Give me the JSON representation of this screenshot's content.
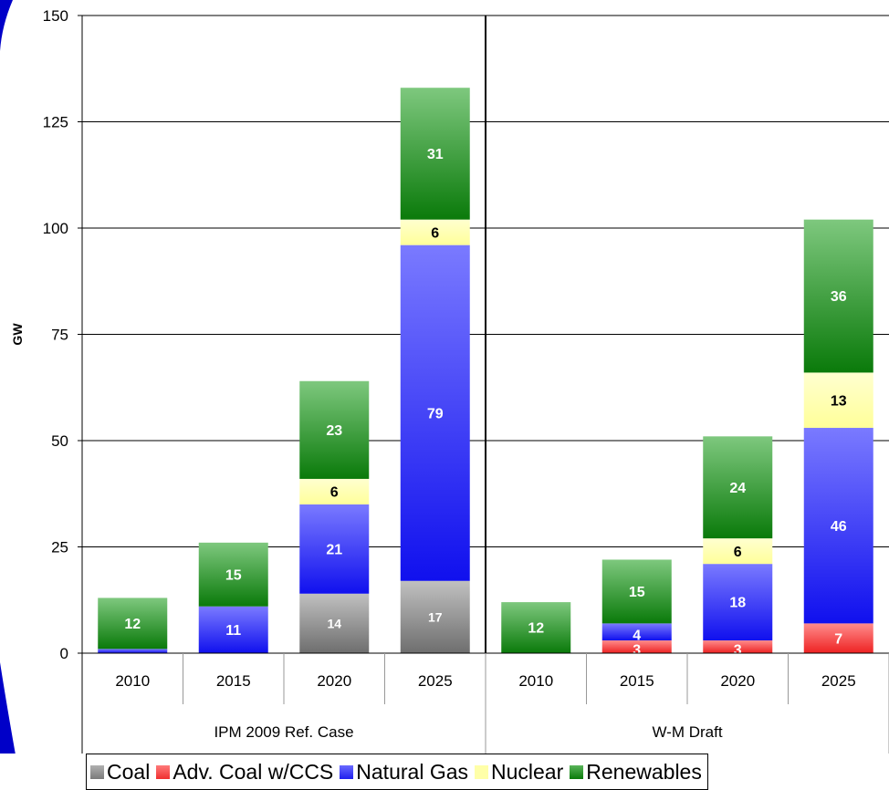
{
  "chart_data": {
    "type": "bar",
    "stacked": true,
    "ylabel": "GW",
    "ylim": [
      0,
      150
    ],
    "yticks": [
      "0",
      "25",
      "50",
      "75",
      "100",
      "125",
      "150"
    ],
    "grid": true,
    "legend_position": "bottom",
    "groups": [
      {
        "label": "IPM 2009 Ref. Case",
        "categories": [
          "2010",
          "2015",
          "2020",
          "2025"
        ],
        "series": [
          {
            "name": "Coal",
            "values": [
              0,
              0,
              14,
              17
            ],
            "labels": [
              "",
              "",
              "14",
              "17"
            ]
          },
          {
            "name": "Adv. Coal w/CCS",
            "values": [
              0,
              0,
              0,
              0
            ],
            "labels": [
              "",
              "",
              "",
              ""
            ]
          },
          {
            "name": "Natural Gas",
            "values": [
              1,
              11,
              21,
              79
            ],
            "labels": [
              "",
              "11",
              "21",
              "79"
            ]
          },
          {
            "name": "Nuclear",
            "values": [
              0,
              0,
              6,
              6
            ],
            "labels": [
              "",
              "",
              "6",
              "6"
            ]
          },
          {
            "name": "Renewables",
            "values": [
              12,
              15,
              23,
              31
            ],
            "labels": [
              "12",
              "15",
              "23",
              "31"
            ]
          }
        ]
      },
      {
        "label": "W-M Draft",
        "categories": [
          "2010",
          "2015",
          "2020",
          "2025"
        ],
        "series": [
          {
            "name": "Coal",
            "values": [
              0,
              0,
              0,
              0
            ],
            "labels": [
              "",
              "",
              "",
              ""
            ]
          },
          {
            "name": "Adv. Coal w/CCS",
            "values": [
              0,
              3,
              3,
              7
            ],
            "labels": [
              "",
              "3",
              "3",
              "7"
            ]
          },
          {
            "name": "Natural Gas",
            "values": [
              0,
              4,
              18,
              46
            ],
            "labels": [
              "",
              "4",
              "18",
              "46"
            ]
          },
          {
            "name": "Nuclear",
            "values": [
              0,
              0,
              6,
              13
            ],
            "labels": [
              "",
              "",
              "6",
              "13"
            ]
          },
          {
            "name": "Renewables",
            "values": [
              12,
              15,
              24,
              36
            ],
            "labels": [
              "12",
              "15",
              "24",
              "36"
            ]
          }
        ]
      }
    ],
    "colors": {
      "Coal": "#8c8c8c",
      "Adv. Coal w/CCS": "#ff4a4a",
      "Natural Gas": "#4a4af2",
      "Nuclear": "#ffffa8",
      "Renewables": "#2e9a2e"
    },
    "label_colors": {
      "Coal": "#ffffff",
      "Adv. Coal w/CCS": "#ffffff",
      "Natural Gas": "#ffffff",
      "Nuclear": "#000000",
      "Renewables": "#ffffff"
    }
  },
  "legend": [
    {
      "name": "Coal",
      "color": "#8c8c8c"
    },
    {
      "name": "Adv. Coal w/CCS",
      "color": "#ff4a4a"
    },
    {
      "name": "Natural Gas",
      "color": "#4a4af2"
    },
    {
      "name": "Nuclear",
      "color": "#ffffa8"
    },
    {
      "name": "Renewables",
      "color": "#2e9a2e"
    }
  ]
}
